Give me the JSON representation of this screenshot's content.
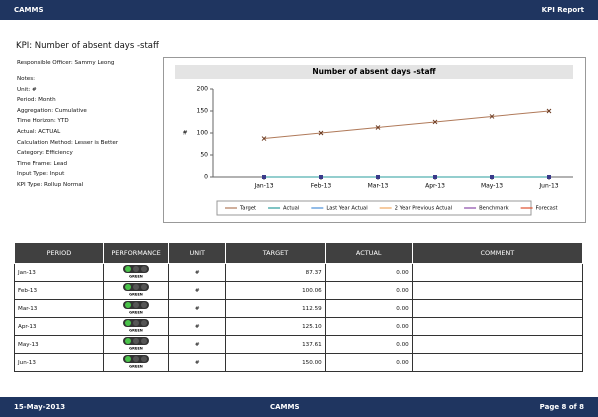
{
  "header": {
    "left": "CAMMS",
    "right": "KPI Report"
  },
  "title": "KPI: Number of  absent days -staff",
  "details": {
    "responsible_officer": "Responsible Officer: Sammy Leong",
    "fields": [
      "Notes:",
      "Unit: #",
      "Period: Month",
      "Aggregation: Cumulative",
      "Time Horizon: YTD",
      "Actual: ACTUAL",
      "Calculation Method: Lesser is Better",
      "Category: Efficiency",
      "Time Frame: Lead",
      "Input Type: Input",
      "KPI Type: Rollup Normal"
    ]
  },
  "chart_data": {
    "type": "line",
    "title": "Number of  absent days -staff",
    "y_label": "#",
    "categories": [
      "Jan-13",
      "Feb-13",
      "Mar-13",
      "Apr-13",
      "May-13",
      "Jun-13"
    ],
    "ylim": [
      0,
      200
    ],
    "yticks": [
      0,
      50,
      100,
      150,
      200
    ],
    "series": [
      {
        "name": "Target",
        "color": "#b07a5a",
        "values": [
          87.37,
          100.06,
          112.59,
          125.1,
          137.61,
          150
        ]
      },
      {
        "name": "Actual",
        "color": "#2a9d9d",
        "values": [
          0,
          0,
          0,
          0,
          0,
          0
        ]
      },
      {
        "name": "Last Year Actual",
        "color": "#4a90d9",
        "values": [
          null,
          null,
          null,
          null,
          null,
          null
        ]
      },
      {
        "name": "2 Year Previous Actual",
        "color": "#f0a860",
        "values": [
          null,
          null,
          null,
          null,
          null,
          null
        ]
      },
      {
        "name": "Benchmark",
        "color": "#8a4aa8",
        "values": [
          null,
          null,
          null,
          null,
          null,
          null
        ]
      },
      {
        "name": "Forecast",
        "color": "#e05030",
        "values": [
          null,
          null,
          null,
          null,
          null,
          null
        ]
      }
    ]
  },
  "table": {
    "columns": [
      "PERIOD",
      "PERFORMANCE",
      "UNIT",
      "TARGET",
      "ACTUAL",
      "COMMENT"
    ],
    "rows": [
      [
        "Jan-13",
        "GREEN",
        "#",
        "87.37",
        "0.00",
        ""
      ],
      [
        "Feb-13",
        "GREEN",
        "#",
        "100.06",
        "0.00",
        ""
      ],
      [
        "Mar-13",
        "GREEN",
        "#",
        "112.59",
        "0.00",
        ""
      ],
      [
        "Apr-13",
        "GREEN",
        "#",
        "125.10",
        "0.00",
        ""
      ],
      [
        "May-13",
        "GREEN",
        "#",
        "137.61",
        "0.00",
        ""
      ],
      [
        "Jun-13",
        "GREEN",
        "#",
        "150.00",
        "0.00",
        ""
      ]
    ]
  },
  "footer": {
    "date": "15-May-2013",
    "center": "CAMMS",
    "page": "Page 8 of 8"
  }
}
